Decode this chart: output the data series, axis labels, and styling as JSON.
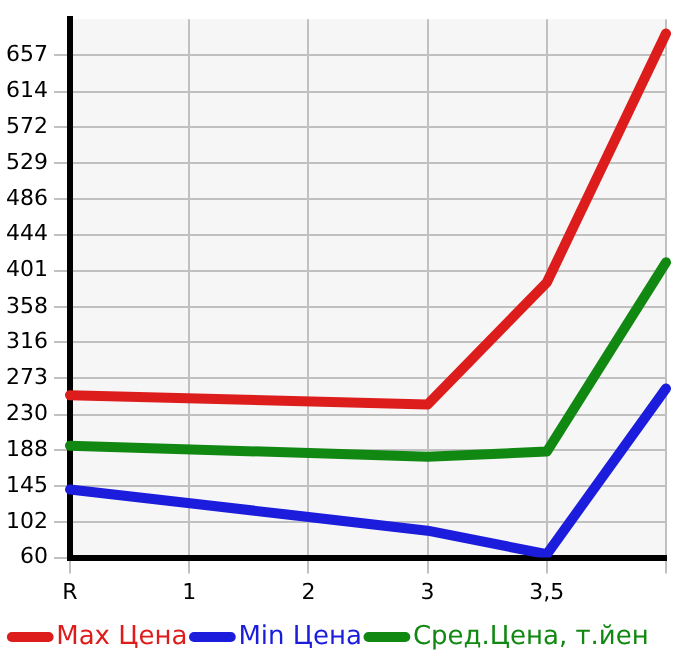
{
  "chart_data": {
    "type": "line",
    "categories": [
      "R",
      "1",
      "2",
      "3",
      "3,5",
      null
    ],
    "series": [
      {
        "name": "Max Цена",
        "color": "#dd1c1c",
        "values": [
          253,
          null,
          null,
          242,
          387,
          683
        ]
      },
      {
        "name": "Min Цена",
        "color": "#1c1cdd",
        "values": [
          141,
          null,
          null,
          92,
          64,
          261
        ]
      },
      {
        "name": "Сред.Цена, т.йен",
        "color": "#118811",
        "values": [
          193,
          null,
          null,
          180,
          186,
          411
        ]
      }
    ],
    "ylim": [
      60,
      700
    ],
    "yticks": [
      60,
      102,
      145,
      188,
      230,
      273,
      316,
      358,
      401,
      444,
      486,
      529,
      572,
      614,
      657
    ],
    "grid": true,
    "legend": "bottom",
    "marker": "none",
    "line_style": "solid"
  }
}
